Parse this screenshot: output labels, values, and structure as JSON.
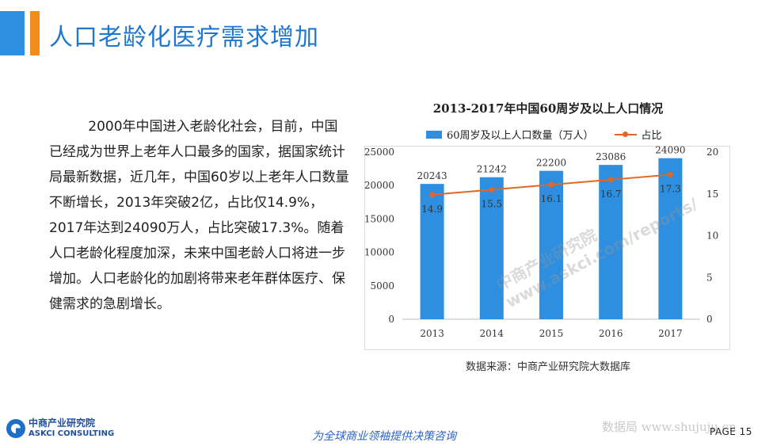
{
  "header": {
    "title": "人口老龄化医疗需求增加"
  },
  "body": {
    "paragraph": "2000年中国进入老龄化社会，目前，中国已经成为世界上老年人口最多的国家，据国家统计局最新数据，近几年，中国60岁以上老年人口数量不断增长，2013年突破2亿，占比仅14.9%，2017年达到24090万人，占比突破17.3%。随着人口老龄化程度加深，未来中国老龄人口将进一步增加。人口老龄化的加剧将带来老年群体医疗、保健需求的急剧增长。"
  },
  "chart_data": {
    "type": "bar",
    "title": "2013-2017年中国60周岁及以上人口情况",
    "categories": [
      "2013",
      "2014",
      "2015",
      "2016",
      "2017"
    ],
    "series": [
      {
        "name": "60周岁及以上人口数量（万人）",
        "type": "bar",
        "axis": "left",
        "values": [
          20243,
          21242,
          22200,
          23086,
          24090
        ],
        "color": "#2e8fe0"
      },
      {
        "name": "占比",
        "type": "line",
        "axis": "right",
        "values": [
          14.9,
          15.5,
          16.1,
          16.7,
          17.3
        ],
        "color": "#e0662a"
      }
    ],
    "ylim_left": [
      0,
      25000
    ],
    "yticks_left": [
      0,
      5000,
      10000,
      15000,
      20000,
      25000
    ],
    "ylim_right": [
      0,
      20
    ],
    "yticks_right": [
      0,
      5,
      10,
      15,
      20
    ],
    "legend_position": "top",
    "grid": false,
    "source": "数据来源：中商产业研究院大数据库"
  },
  "footer": {
    "logo_cn": "中商产业研究院",
    "logo_en": "ASKCI CONSULTING",
    "slogan": "为全球商业领袖提供决策咨询",
    "watermark_right": "数据局 www.shujuju.cn",
    "page_label": "PAGE  15"
  },
  "watermark": {
    "text": "中商产业研究院 www.askci.com/reports/"
  }
}
